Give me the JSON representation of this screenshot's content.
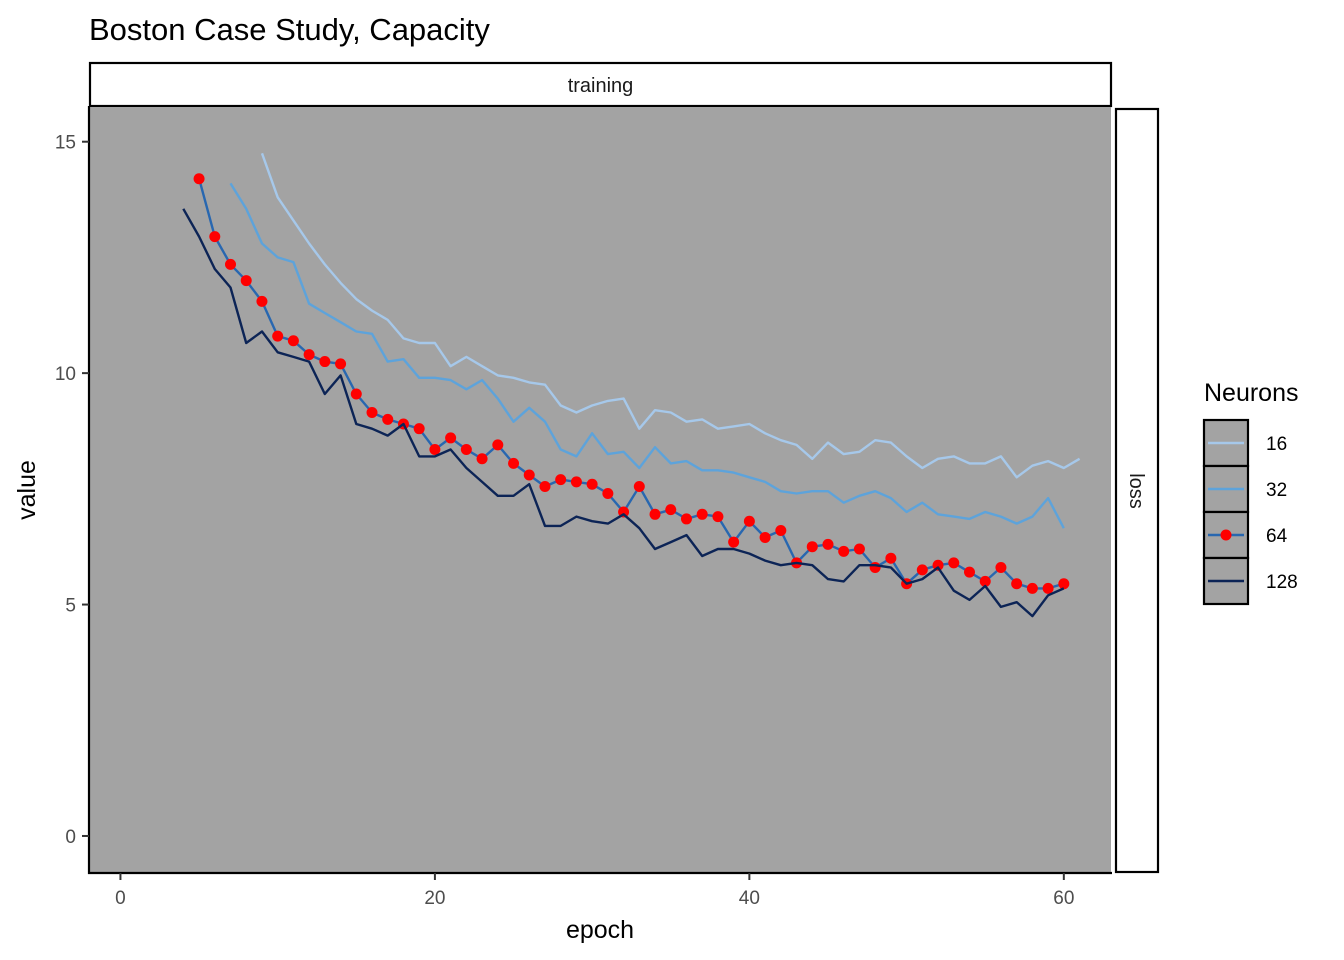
{
  "chart_data": {
    "type": "line",
    "title": "Boston Case Study, Capacity",
    "facet_top": "training",
    "facet_right": "loss",
    "xlabel": "epoch",
    "ylabel": "value",
    "xlim": [
      -2,
      63
    ],
    "ylim": [
      -0.8,
      15.75
    ],
    "x_ticks": [
      0,
      20,
      40,
      60
    ],
    "y_ticks": [
      0,
      5,
      10,
      15
    ],
    "grid": false,
    "panel_background": "#a3a3a3",
    "legend": {
      "title": "Neurons",
      "position": "right"
    },
    "series": [
      {
        "name": "16",
        "color": "#a6c8ea",
        "points": false,
        "start_epoch": 9,
        "values": [
          14.75,
          13.8,
          13.3,
          12.8,
          12.35,
          11.95,
          11.6,
          11.35,
          11.15,
          10.75,
          10.65,
          10.65,
          10.15,
          10.35,
          10.15,
          9.95,
          9.9,
          9.8,
          9.75,
          9.3,
          9.15,
          9.3,
          9.4,
          9.45,
          8.8,
          9.2,
          9.15,
          8.95,
          9.0,
          8.8,
          8.85,
          8.9,
          8.7,
          8.55,
          8.45,
          8.15,
          8.5,
          8.25,
          8.3,
          8.55,
          8.5,
          8.2,
          7.95,
          8.15,
          8.2,
          8.05,
          8.05,
          8.2,
          7.75,
          8.0,
          8.1,
          7.95,
          8.15
        ]
      },
      {
        "name": "32",
        "color": "#5da3db",
        "points": false,
        "start_epoch": 7,
        "values": [
          14.1,
          13.55,
          12.8,
          12.5,
          12.4,
          11.5,
          11.3,
          11.1,
          10.9,
          10.85,
          10.25,
          10.3,
          9.9,
          9.9,
          9.85,
          9.65,
          9.85,
          9.45,
          8.95,
          9.25,
          8.95,
          8.35,
          8.2,
          8.7,
          8.25,
          8.3,
          7.95,
          8.4,
          8.05,
          8.1,
          7.9,
          7.9,
          7.85,
          7.75,
          7.65,
          7.45,
          7.4,
          7.45,
          7.45,
          7.2,
          7.35,
          7.45,
          7.3,
          7.0,
          7.2,
          6.95,
          6.9,
          6.85,
          7.0,
          6.9,
          6.75,
          6.9,
          7.3,
          6.65
        ]
      },
      {
        "name": "64",
        "color": "#2867b0",
        "points": true,
        "point_color": "#ff0000",
        "start_epoch": 5,
        "values": [
          14.2,
          12.95,
          12.35,
          12.0,
          11.55,
          10.8,
          10.7,
          10.4,
          10.25,
          10.2,
          9.55,
          9.15,
          9.0,
          8.9,
          8.8,
          8.35,
          8.6,
          8.35,
          8.15,
          8.45,
          8.05,
          7.8,
          7.55,
          7.7,
          7.65,
          7.6,
          7.4,
          7.0,
          7.55,
          6.95,
          7.05,
          6.85,
          6.95,
          6.9,
          6.35,
          6.8,
          6.45,
          6.6,
          5.9,
          6.25,
          6.3,
          6.15,
          6.2,
          5.8,
          6.0,
          5.45,
          5.75,
          5.85,
          5.9,
          5.7,
          5.5,
          5.8,
          5.45,
          5.35,
          5.35,
          5.45
        ]
      },
      {
        "name": "128",
        "color": "#0c2456",
        "points": false,
        "start_epoch": 4,
        "values": [
          13.55,
          12.95,
          12.25,
          11.85,
          10.65,
          10.9,
          10.45,
          10.35,
          10.25,
          9.55,
          9.95,
          8.9,
          8.8,
          8.65,
          8.9,
          8.2,
          8.2,
          8.35,
          7.95,
          7.65,
          7.35,
          7.35,
          7.6,
          6.7,
          6.7,
          6.9,
          6.8,
          6.75,
          6.95,
          6.65,
          6.2,
          6.35,
          6.5,
          6.05,
          6.2,
          6.2,
          6.1,
          5.95,
          5.85,
          5.9,
          5.85,
          5.55,
          5.5,
          5.85,
          5.85,
          5.8,
          5.45,
          5.55,
          5.8,
          5.3,
          5.1,
          5.4,
          4.95,
          5.05,
          4.75,
          5.2,
          5.35
        ]
      }
    ]
  }
}
